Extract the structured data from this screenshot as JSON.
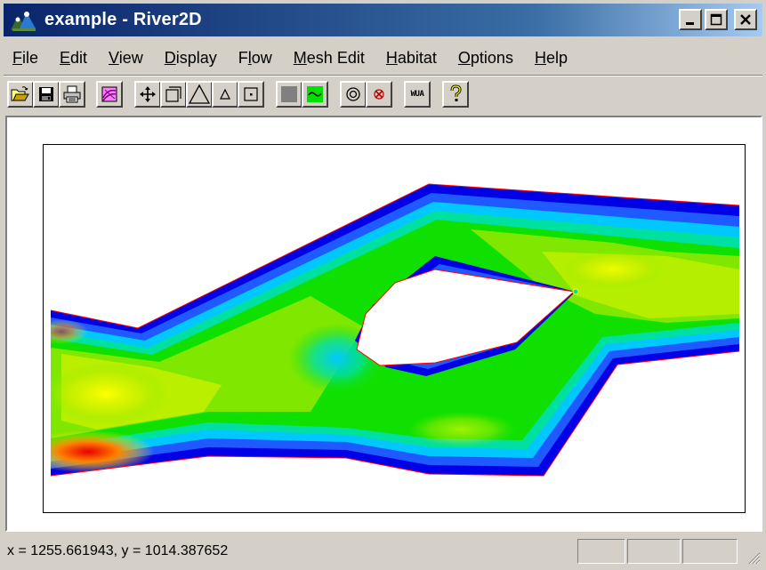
{
  "window": {
    "title": "example - River2D",
    "icon": "river2d-app-icon",
    "controls": {
      "minimize": "_",
      "maximize": "□",
      "close": "×"
    }
  },
  "menu": [
    {
      "label": "File",
      "mnemonic_index": 0
    },
    {
      "label": "Edit",
      "mnemonic_index": 0
    },
    {
      "label": "View",
      "mnemonic_index": 0
    },
    {
      "label": "Display",
      "mnemonic_index": 0
    },
    {
      "label": "Flow",
      "mnemonic_index": 1
    },
    {
      "label": "Mesh Edit",
      "mnemonic_index": 0
    },
    {
      "label": "Habitat",
      "mnemonic_index": 0
    },
    {
      "label": "Options",
      "mnemonic_index": 0
    },
    {
      "label": "Help",
      "mnemonic_index": 0
    }
  ],
  "toolbar": [
    {
      "name": "open-file",
      "icon": "open-folder-icon"
    },
    {
      "name": "save-file",
      "icon": "floppy-disk-icon"
    },
    {
      "name": "print",
      "icon": "printer-icon"
    },
    {
      "name": "background-image",
      "icon": "contour-map-icon"
    },
    {
      "name": "pan",
      "icon": "four-way-arrow-icon"
    },
    {
      "name": "zoom-box",
      "icon": "zoom-box-icon"
    },
    {
      "name": "zoom-in",
      "icon": "large-triangle-icon"
    },
    {
      "name": "zoom-out",
      "icon": "small-triangle-icon"
    },
    {
      "name": "center",
      "icon": "dot-in-square-icon"
    },
    {
      "name": "display-mesh",
      "icon": "gray-fill-icon"
    },
    {
      "name": "display-contours",
      "icon": "green-contour-icon"
    },
    {
      "name": "velocity-vectors",
      "icon": "concentric-circles-icon"
    },
    {
      "name": "delete-node",
      "icon": "red-x-icon"
    },
    {
      "name": "wua",
      "icon": "wua-icon",
      "label": "WUA"
    },
    {
      "name": "help",
      "icon": "question-mark-icon"
    }
  ],
  "plot": {
    "type": "contour-map",
    "boundary_color": "#ff0000",
    "colors": {
      "deep_blue": "#0000e6",
      "blue": "#1e5aff",
      "cyan": "#00c8ff",
      "teal": "#00e0a0",
      "green": "#10e000",
      "lime": "#80e800",
      "yellow_green": "#c8f000",
      "yellow": "#ffff00",
      "orange": "#ff8000",
      "red": "#e80000"
    }
  },
  "status": {
    "coords": "x = 1255.661943, y = 1014.387652"
  }
}
